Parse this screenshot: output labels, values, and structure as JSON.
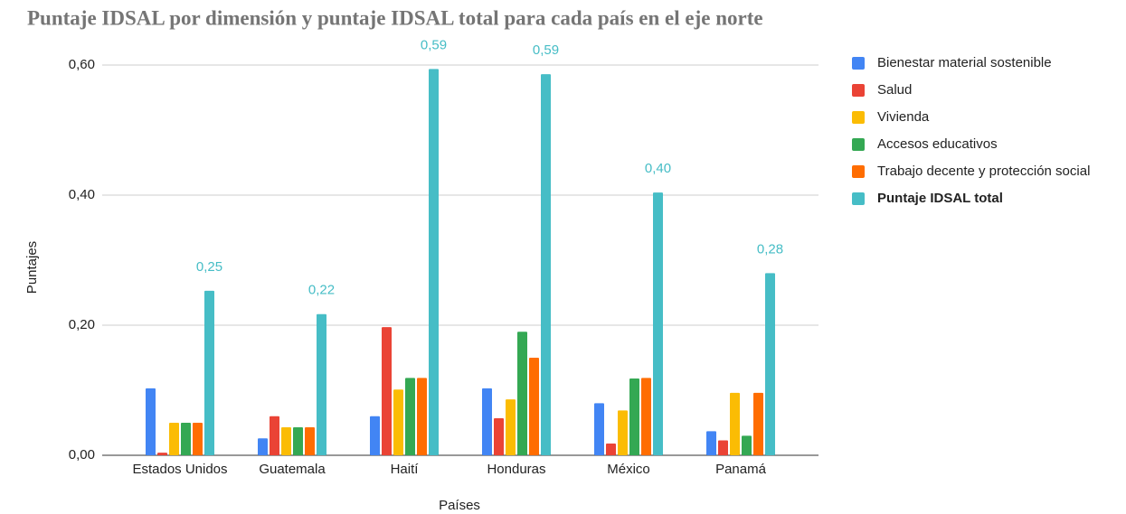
{
  "chart_data": {
    "type": "bar",
    "title": "Puntaje IDSAL por dimensión y puntaje IDSAL total para cada país en el eje norte",
    "x_label": "Países",
    "y_label": "Puntajes",
    "categories": [
      "Estados Unidos",
      "Guatemala",
      "Haití",
      "Honduras",
      "México",
      "Panamá"
    ],
    "series": [
      {
        "name": "Bienestar material sostenible",
        "color": "#4285f4",
        "values": [
          0.103,
          0.026,
          0.06,
          0.103,
          0.08,
          0.037
        ]
      },
      {
        "name": "Salud",
        "color": "#ea4335",
        "values": [
          0.004,
          0.06,
          0.197,
          0.057,
          0.018,
          0.023
        ]
      },
      {
        "name": "Vivienda",
        "color": "#fbbc04",
        "values": [
          0.05,
          0.043,
          0.101,
          0.086,
          0.069,
          0.096
        ]
      },
      {
        "name": "Accesos educativos",
        "color": "#34a853",
        "values": [
          0.05,
          0.043,
          0.119,
          0.19,
          0.118,
          0.03
        ]
      },
      {
        "name": "Trabajo decente y protección social",
        "color": "#ff6d01",
        "values": [
          0.05,
          0.043,
          0.119,
          0.15,
          0.119,
          0.096
        ]
      },
      {
        "name": "Puntaje IDSAL total",
        "color": "#46bdc6",
        "values": [
          0.253,
          0.217,
          0.594,
          0.586,
          0.404,
          0.28
        ],
        "value_labels": [
          "0,25",
          "0,22",
          "0,59",
          "0,59",
          "0,40",
          "0,28"
        ]
      }
    ],
    "ylim": [
      0,
      0.6
    ],
    "yticks": [
      {
        "value": 0,
        "label": "0,00"
      },
      {
        "value": 0.2,
        "label": "0,20"
      },
      {
        "value": 0.4,
        "label": "0,40"
      },
      {
        "value": 0.6,
        "label": "0,60"
      }
    ],
    "grid": true,
    "legend": "right"
  }
}
